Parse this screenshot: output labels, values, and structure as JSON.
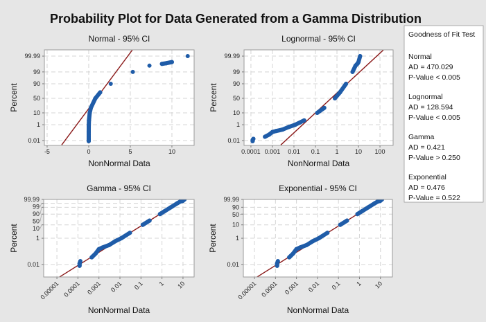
{
  "chart_data": {
    "title": "Probability Plot for Data Generated from a Gamma Distribution",
    "colors": {
      "points": "#1f5ca8",
      "fit_line": "#8b1a1a",
      "background": "#e6e6e6",
      "plot_bg": "#ffffff",
      "grid": "#d4d4d4"
    },
    "grid": true,
    "legend": {
      "placement": "right",
      "title": "Goodness of Fit Test",
      "entries": [
        {
          "name": "Normal",
          "ad": "AD = 470.029",
          "p": "P-Value < 0.005"
        },
        {
          "name": "Lognormal",
          "ad": "AD = 128.594",
          "p": "P-Value < 0.005"
        },
        {
          "name": "Gamma",
          "ad": "AD = 0.421",
          "p": "P-Value > 0.250"
        },
        {
          "name": "Exponential",
          "ad": "AD = 0.476",
          "p": "P-Value = 0.522"
        }
      ]
    },
    "data_points": [
      [
        0.00012,
        0.008
      ],
      [
        0.00012,
        0.012
      ],
      [
        0.00013,
        0.018
      ],
      [
        0.00045,
        0.035
      ],
      [
        0.0007,
        0.07
      ],
      [
        0.001,
        0.15
      ],
      [
        0.0015,
        0.2
      ],
      [
        0.003,
        0.3
      ],
      [
        0.006,
        0.6
      ],
      [
        0.0116,
        1
      ],
      [
        0.03,
        2.6
      ],
      [
        0.121,
        10
      ],
      [
        0.257,
        20
      ],
      [
        0.8,
        50
      ],
      [
        1.38,
        70
      ],
      [
        2.65,
        90
      ],
      [
        5.3,
        99
      ],
      [
        7.3,
        99.8
      ],
      [
        8.8,
        99.88
      ],
      [
        9.3,
        99.9
      ],
      [
        10,
        99.93
      ],
      [
        11.9,
        99.99
      ]
    ],
    "panels": [
      {
        "type": "scatter",
        "title": "Normal - 95% CI",
        "xlabel": "NonNormal Data",
        "ylabel": "Percent",
        "x_scale": "linear",
        "y_scale": "normal-probability",
        "x_ticks": [
          {
            "v": -5,
            "label": "-5"
          },
          {
            "v": 0,
            "label": "0"
          },
          {
            "v": 5,
            "label": "5"
          },
          {
            "v": 10,
            "label": "10"
          }
        ],
        "y_ticks": [
          {
            "v": 99.99,
            "label": "99.99"
          },
          {
            "v": 99,
            "label": "99"
          },
          {
            "v": 90,
            "label": "90"
          },
          {
            "v": 50,
            "label": "50"
          },
          {
            "v": 10,
            "label": "10"
          },
          {
            "v": 1,
            "label": "1"
          },
          {
            "v": 0.01,
            "label": "0.01"
          }
        ],
        "fit_line": [
          [
            -3.25,
            0.002
          ],
          [
            5.25,
            99.999
          ]
        ]
      },
      {
        "type": "scatter",
        "title": "Lognormal - 95% CI",
        "xlabel": "NonNormal Data",
        "ylabel": "Percent",
        "x_scale": "log",
        "y_scale": "normal-probability",
        "x_ticks": [
          {
            "v": 0.0001,
            "label": "0.0001"
          },
          {
            "v": 0.001,
            "label": "0.001"
          },
          {
            "v": 0.01,
            "label": "0.01"
          },
          {
            "v": 0.1,
            "label": "0.1"
          },
          {
            "v": 1,
            "label": "1"
          },
          {
            "v": 10,
            "label": "10"
          },
          {
            "v": 100,
            "label": "100"
          }
        ],
        "y_ticks": [
          {
            "v": 99.99,
            "label": "99.99"
          },
          {
            "v": 99,
            "label": "99"
          },
          {
            "v": 90,
            "label": "90"
          },
          {
            "v": 50,
            "label": "50"
          },
          {
            "v": 10,
            "label": "10"
          },
          {
            "v": 1,
            "label": "1"
          },
          {
            "v": 0.01,
            "label": "0.01"
          }
        ],
        "fit_line": [
          [
            0.00245,
            0.002
          ],
          [
            145,
            99.999
          ]
        ]
      },
      {
        "type": "scatter",
        "title": "Gamma - 95% CI",
        "xlabel": "NonNormal Data",
        "ylabel": "Percent",
        "x_scale": "log",
        "y_scale": "gamma-probability",
        "x_ticks": [
          {
            "v": 1e-05,
            "label": "0.00001"
          },
          {
            "v": 0.0001,
            "label": "0.0001"
          },
          {
            "v": 0.001,
            "label": "0.001"
          },
          {
            "v": 0.01,
            "label": "0.01"
          },
          {
            "v": 0.1,
            "label": "0.1"
          },
          {
            "v": 1,
            "label": "1"
          },
          {
            "v": 10,
            "label": "10"
          }
        ],
        "y_ticks": [
          {
            "v": 99.99,
            "label": "99.99"
          },
          {
            "v": 99,
            "label": "99"
          },
          {
            "v": 90,
            "label": "90"
          },
          {
            "v": 50,
            "label": "50"
          },
          {
            "v": 10,
            "label": "10"
          },
          {
            "v": 1,
            "label": "1"
          },
          {
            "v": 0.01,
            "label": "0.01"
          }
        ],
        "fit_line": [
          [
            1.3e-05,
            0.0011
          ],
          [
            10.6,
            99.99
          ]
        ]
      },
      {
        "type": "scatter",
        "title": "Exponential - 95% CI",
        "xlabel": "NonNormal Data",
        "ylabel": "Percent",
        "x_scale": "log",
        "y_scale": "exponential-probability",
        "x_ticks": [
          {
            "v": 1e-05,
            "label": "0.00001"
          },
          {
            "v": 0.0001,
            "label": "0.0001"
          },
          {
            "v": 0.001,
            "label": "0.001"
          },
          {
            "v": 0.01,
            "label": "0.01"
          },
          {
            "v": 0.1,
            "label": "0.1"
          },
          {
            "v": 1,
            "label": "1"
          },
          {
            "v": 10,
            "label": "10"
          }
        ],
        "y_ticks": [
          {
            "v": 99.99,
            "label": "99.99"
          },
          {
            "v": 90,
            "label": "90"
          },
          {
            "v": 50,
            "label": "50"
          },
          {
            "v": 10,
            "label": "10"
          },
          {
            "v": 1,
            "label": "1"
          },
          {
            "v": 0.01,
            "label": "0.01"
          }
        ],
        "fit_line": [
          [
            1.3e-05,
            0.0011
          ],
          [
            10.6,
            99.99
          ]
        ]
      }
    ]
  }
}
